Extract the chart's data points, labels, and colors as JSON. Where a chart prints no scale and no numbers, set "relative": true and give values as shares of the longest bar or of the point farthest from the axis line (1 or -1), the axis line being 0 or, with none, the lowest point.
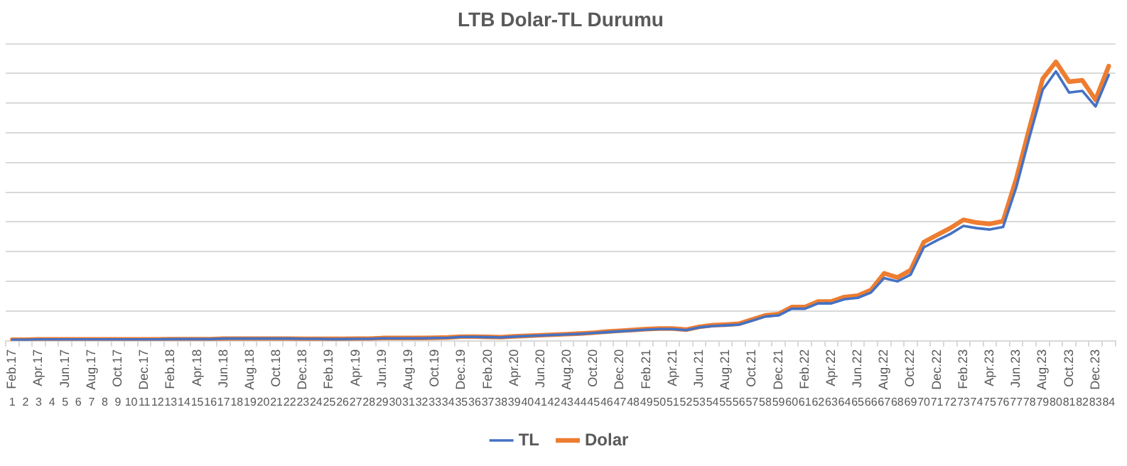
{
  "chart_data": {
    "type": "line",
    "title": "LTB Dolar-TL Durumu",
    "relative": true,
    "grid": "y",
    "legend": "bottom",
    "line_style": "solid",
    "categories": [
      "Feb.17",
      null,
      "Apr.17",
      null,
      "Jun.17",
      null,
      "Aug.17",
      null,
      "Oct.17",
      null,
      "Dec.17",
      null,
      "Feb.18",
      null,
      "Apr.18",
      null,
      "Jun.18",
      null,
      "Aug.18",
      null,
      "Oct.18",
      null,
      "Dec.18",
      null,
      "Feb.19",
      null,
      "Apr.19",
      null,
      "Jun.19",
      null,
      "Aug.19",
      null,
      "Oct.19",
      null,
      "Dec.19",
      null,
      "Feb.20",
      null,
      "Apr.20",
      null,
      "Jun.20",
      null,
      "Aug.20",
      null,
      "Oct.20",
      null,
      "Dec.20",
      null,
      "Feb.21",
      null,
      "Apr.21",
      null,
      "Jun.21",
      null,
      "Aug.21",
      null,
      "Oct.21",
      null,
      "Dec.21",
      null,
      "Feb.22",
      null,
      "Apr.22",
      null,
      "Jun.22",
      null,
      "Aug.22",
      null,
      "Oct.22",
      null,
      "Dec.22",
      null,
      "Feb.23",
      null,
      "Apr.23",
      null,
      "Jun.23",
      null,
      "Aug.23",
      null,
      "Oct.23",
      null,
      "Dec.23",
      null
    ],
    "x2lim": [
      0.5,
      84.5
    ],
    "x2ticks": [
      1,
      2,
      3,
      4,
      5,
      6,
      7,
      8,
      9,
      10,
      11,
      12,
      13,
      14,
      15,
      16,
      17,
      18,
      19,
      20,
      21,
      22,
      23,
      24,
      25,
      26,
      27,
      28,
      29,
      30,
      31,
      32,
      33,
      34,
      35,
      36,
      37,
      38,
      39,
      40,
      41,
      42,
      43,
      44,
      45,
      46,
      47,
      48,
      49,
      50,
      51,
      52,
      53,
      54,
      55,
      56,
      57,
      58,
      59,
      60,
      61,
      62,
      63,
      64,
      65,
      66,
      67,
      68,
      69,
      70,
      71,
      72,
      73,
      74,
      75,
      76,
      77,
      78,
      79,
      80,
      81,
      82,
      83,
      84
    ],
    "series": [
      {
        "name": "TL",
        "color": "#4472c4",
        "values": [
          0.004,
          0.004,
          0.005,
          0.005,
          0.005,
          0.005,
          0.005,
          0.005,
          0.005,
          0.005,
          0.005,
          0.005,
          0.006,
          0.006,
          0.006,
          0.006,
          0.008,
          0.008,
          0.008,
          0.008,
          0.008,
          0.008,
          0.007,
          0.007,
          0.006,
          0.006,
          0.007,
          0.007,
          0.009,
          0.009,
          0.009,
          0.009,
          0.01,
          0.011,
          0.014,
          0.014,
          0.013,
          0.012,
          0.015,
          0.017,
          0.019,
          0.021,
          0.023,
          0.025,
          0.028,
          0.031,
          0.034,
          0.037,
          0.04,
          0.042,
          0.042,
          0.038,
          0.048,
          0.053,
          0.055,
          0.058,
          0.072,
          0.087,
          0.091,
          0.115,
          0.115,
          0.134,
          0.134,
          0.149,
          0.154,
          0.173,
          0.225,
          0.213,
          0.237,
          0.335,
          0.36,
          0.383,
          0.412,
          0.404,
          0.399,
          0.408,
          0.55,
          0.73,
          0.9,
          0.966,
          0.89,
          0.896,
          0.84,
          0.953
        ]
      },
      {
        "name": "Dolar",
        "color": "#ed7d31",
        "values": [
          0.004,
          0.004,
          0.005,
          0.005,
          0.005,
          0.005,
          0.005,
          0.005,
          0.005,
          0.005,
          0.005,
          0.005,
          0.006,
          0.006,
          0.006,
          0.006,
          0.008,
          0.008,
          0.008,
          0.008,
          0.008,
          0.008,
          0.007,
          0.007,
          0.007,
          0.007,
          0.008,
          0.008,
          0.01,
          0.01,
          0.01,
          0.01,
          0.011,
          0.012,
          0.015,
          0.015,
          0.014,
          0.013,
          0.016,
          0.018,
          0.02,
          0.022,
          0.024,
          0.026,
          0.029,
          0.033,
          0.036,
          0.039,
          0.042,
          0.044,
          0.044,
          0.04,
          0.05,
          0.056,
          0.058,
          0.061,
          0.076,
          0.091,
          0.096,
          0.121,
          0.121,
          0.141,
          0.141,
          0.157,
          0.162,
          0.182,
          0.242,
          0.227,
          0.253,
          0.354,
          0.379,
          0.404,
          0.434,
          0.424,
          0.419,
          0.429,
          0.581,
          0.763,
          0.939,
          1,
          0.929,
          0.934,
          0.864,
          0.985
        ]
      }
    ]
  }
}
